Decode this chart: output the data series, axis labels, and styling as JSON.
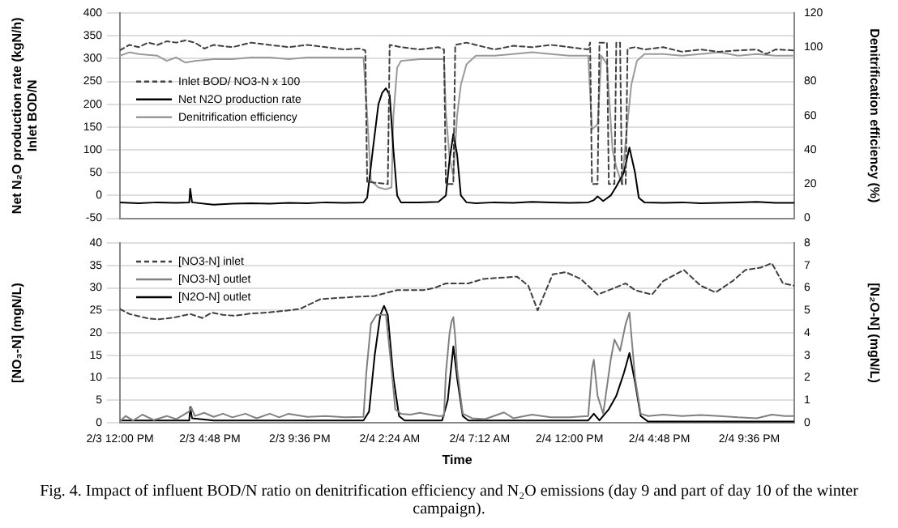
{
  "chart_data": [
    {
      "type": "line",
      "ylabel": "Net N₂O production rate (kgN/h)\nInlet BOD/N",
      "y2label": "Denitrification efficiency (%)",
      "xlim": [
        "--02-03T12:00",
        "--02-05T00:00"
      ],
      "ylim": [
        -50,
        400
      ],
      "yticks": [
        -50,
        0,
        50,
        100,
        150,
        200,
        250,
        300,
        350,
        400
      ],
      "y2lim": [
        0,
        120
      ],
      "y2ticks": [
        0,
        20,
        40,
        60,
        80,
        100,
        120
      ],
      "tick_labels": "y",
      "grid": "y",
      "legend": "left",
      "series": [
        {
          "name": "Inlet BOD/ NO3-N x 100",
          "color": "#404040",
          "line_style": "dashed",
          "x": [
            "--02-03T12:00",
            "--02-03T12:30",
            "--02-03T13:00",
            "--02-03T13:30",
            "--02-03T14:00",
            "--02-03T14:30",
            "--02-03T15:00",
            "--02-03T15:30",
            "--02-03T16:00",
            "--02-03T16:30",
            "--02-03T17:00",
            "--02-03T18:00",
            "--02-03T19:00",
            "--02-03T20:00",
            "--02-03T21:00",
            "--02-03T22:00",
            "--02-03T23:00",
            "--02-04T00:00",
            "--02-04T00:48",
            "--02-04T01:06",
            "--02-04T01:12",
            "--02-04T02:18",
            "--02-04T02:24",
            "--02-04T03:00",
            "--02-04T04:00",
            "--02-04T05:00",
            "--02-04T05:18",
            "--02-04T05:24",
            "--02-04T05:48",
            "--02-04T05:54",
            "--02-04T06:30",
            "--02-04T07:00",
            "--02-04T08:00",
            "--02-04T09:00",
            "--02-04T10:00",
            "--02-04T11:00",
            "--02-04T12:00",
            "--02-04T13:00",
            "--02-04T13:06",
            "--02-04T13:12",
            "--02-04T13:30",
            "--02-04T13:36",
            "--02-04T14:00",
            "--02-04T14:06",
            "--02-04T14:24",
            "--02-04T14:30",
            "--02-04T14:42",
            "--02-04T14:48",
            "--02-04T15:00",
            "--02-04T15:06",
            "--02-04T15:30",
            "--02-04T16:00",
            "--02-04T17:00",
            "--02-04T18:00",
            "--02-04T19:00",
            "--02-04T20:00",
            "--02-04T21:00",
            "--02-04T22:00",
            "--02-04T22:30",
            "--02-04T23:00",
            "--02-05T00:00"
          ],
          "values": [
            318,
            330,
            325,
            335,
            330,
            338,
            335,
            340,
            335,
            322,
            330,
            325,
            335,
            330,
            325,
            330,
            325,
            320,
            322,
            318,
            30,
            25,
            330,
            325,
            320,
            325,
            320,
            25,
            25,
            330,
            335,
            330,
            320,
            328,
            325,
            330,
            325,
            320,
            335,
            25,
            25,
            335,
            335,
            25,
            25,
            335,
            335,
            25,
            25,
            322,
            325,
            320,
            325,
            315,
            320,
            315,
            318,
            320,
            310,
            320,
            318
          ]
        },
        {
          "name": "Net N2O production rate",
          "color": "#000000",
          "line_style": "solid",
          "x": [
            "--02-03T12:00",
            "--02-03T13:00",
            "--02-03T14:00",
            "--02-03T15:00",
            "--02-03T15:42",
            "--02-03T15:45",
            "--02-03T15:51",
            "--02-03T17:00",
            "--02-03T18:00",
            "--02-03T19:00",
            "--02-03T20:00",
            "--02-03T21:00",
            "--02-03T22:00",
            "--02-03T23:00",
            "--02-04T00:00",
            "--02-04T01:00",
            "--02-04T01:12",
            "--02-04T01:30",
            "--02-04T01:48",
            "--02-04T02:00",
            "--02-04T02:12",
            "--02-04T02:24",
            "--02-04T02:36",
            "--02-04T02:48",
            "--02-04T03:00",
            "--02-04T04:00",
            "--02-04T05:00",
            "--02-04T05:24",
            "--02-04T05:36",
            "--02-04T05:48",
            "--02-04T06:00",
            "--02-04T06:12",
            "--02-04T06:30",
            "--02-04T07:00",
            "--02-04T08:00",
            "--02-04T09:00",
            "--02-04T10:00",
            "--02-04T11:00",
            "--02-04T12:00",
            "--02-04T13:00",
            "--02-04T13:18",
            "--02-04T13:30",
            "--02-04T13:48",
            "--02-04T14:12",
            "--02-04T14:30",
            "--02-04T14:54",
            "--02-04T15:12",
            "--02-04T15:30",
            "--02-04T15:42",
            "--02-04T16:00",
            "--02-04T17:00",
            "--02-04T18:00",
            "--02-04T19:00",
            "--02-04T20:00",
            "--02-04T21:00",
            "--02-04T22:00",
            "--02-04T23:00",
            "--02-05T00:00"
          ],
          "values": [
            -15,
            -17,
            -15,
            -16,
            -15,
            15,
            -15,
            -20,
            -18,
            -17,
            -18,
            -16,
            -17,
            -15,
            -16,
            -15,
            -5,
            100,
            200,
            225,
            235,
            220,
            100,
            0,
            -15,
            -15,
            -14,
            0,
            80,
            135,
            90,
            0,
            -15,
            -17,
            -15,
            -16,
            -14,
            -15,
            -16,
            -15,
            -10,
            -2,
            -12,
            0,
            20,
            50,
            105,
            50,
            -5,
            -15,
            -16,
            -15,
            -17,
            -16,
            -15,
            -14,
            -16,
            -16
          ]
        },
        {
          "name": "Denitrification efficiency",
          "color": "#9a9a9a",
          "line_style": "solid",
          "axis": "y2",
          "x": [
            "--02-03T12:00",
            "--02-03T12:30",
            "--02-03T13:00",
            "--02-03T14:00",
            "--02-03T14:30",
            "--02-03T15:00",
            "--02-03T15:30",
            "--02-03T16:00",
            "--02-03T17:00",
            "--02-03T18:00",
            "--02-03T19:00",
            "--02-03T20:00",
            "--02-03T21:00",
            "--02-03T22:00",
            "--02-03T23:00",
            "--02-04T00:00",
            "--02-04T01:00",
            "--02-04T01:12",
            "--02-04T01:24",
            "--02-04T01:48",
            "--02-04T02:12",
            "--02-04T02:30",
            "--02-04T02:36",
            "--02-04T02:48",
            "--02-04T03:00",
            "--02-04T04:00",
            "--02-04T05:00",
            "--02-04T05:18",
            "--02-04T05:24",
            "--02-04T05:36",
            "--02-04T05:48",
            "--02-04T06:00",
            "--02-04T06:12",
            "--02-04T06:30",
            "--02-04T07:00",
            "--02-04T08:00",
            "--02-04T09:00",
            "--02-04T10:00",
            "--02-04T11:00",
            "--02-04T12:00",
            "--02-04T13:00",
            "--02-04T13:12",
            "--02-04T13:30",
            "--02-04T13:42",
            "--02-04T14:00",
            "--02-04T14:18",
            "--02-04T14:30",
            "--02-04T14:48",
            "--02-04T15:00",
            "--02-04T15:18",
            "--02-04T15:36",
            "--02-04T16:00",
            "--02-04T17:00",
            "--02-04T18:00",
            "--02-04T19:00",
            "--02-04T20:00",
            "--02-04T21:00",
            "--02-04T22:00",
            "--02-04T23:00",
            "--02-05T00:00"
          ],
          "values": [
            95,
            97,
            96,
            95,
            92,
            94,
            91,
            92,
            93,
            93,
            94,
            94,
            93,
            94,
            94,
            94,
            94,
            60,
            22,
            18,
            17,
            18,
            60,
            88,
            92,
            93,
            93,
            93,
            62,
            35,
            25,
            60,
            78,
            90,
            95,
            95,
            96,
            97,
            96,
            95,
            95,
            52,
            55,
            95,
            90,
            40,
            30,
            20,
            45,
            78,
            92,
            96,
            96,
            95,
            96,
            97,
            95,
            96,
            95,
            95
          ]
        }
      ]
    },
    {
      "type": "line",
      "xlabel": "Time",
      "ylabel": "[NO₃-N] (mgN/L)",
      "y2label": "[N₂O-N] (mgN/L)",
      "xlim": [
        "--02-03T12:00",
        "--02-05T00:00"
      ],
      "xticks": [
        {
          "value": "--02-03T12:00",
          "label": "2/3 12:00 PM"
        },
        {
          "value": "--02-03T16:48",
          "label": "2/3 4:48 PM"
        },
        {
          "value": "--02-03T21:36",
          "label": "2/3 9:36 PM"
        },
        {
          "value": "--02-04T02:24",
          "label": "2/4 2:24 AM"
        },
        {
          "value": "--02-04T07:12",
          "label": "2/4 7:12 AM"
        },
        {
          "value": "--02-04T12:00",
          "label": "2/4 12:00 PM"
        },
        {
          "value": "--02-04T16:48",
          "label": "2/4 4:48 PM"
        },
        {
          "value": "--02-04T21:36",
          "label": "2/4 9:36 PM"
        }
      ],
      "ylim": [
        0,
        40
      ],
      "yticks": [
        0,
        5,
        10,
        15,
        20,
        25,
        30,
        35,
        40
      ],
      "y2lim": [
        0,
        8
      ],
      "y2ticks": [
        0,
        1,
        2,
        3,
        4,
        5,
        6,
        7,
        8
      ],
      "grid": "y",
      "legend": "top left",
      "annotations": [
        "Fig. 4. Impact of influent BOD/N ratio on denitrification efficiency and N₂O emissions (day 9 and part of day 10 of the winter campaign)."
      ],
      "series": [
        {
          "name": "[NO3-N] inlet",
          "color": "#404040",
          "line_style": "dashed",
          "x": [
            "--02-03T12:00",
            "--02-03T12:30",
            "--02-03T13:00",
            "--02-03T13:30",
            "--02-03T14:00",
            "--02-03T14:30",
            "--02-03T15:00",
            "--02-03T15:45",
            "--02-03T16:24",
            "--02-03T16:54",
            "--02-03T17:30",
            "--02-03T18:06",
            "--02-03T19:00",
            "--02-03T19:48",
            "--02-03T21:00",
            "--02-03T21:36",
            "--02-03T22:42",
            "--02-04T00:30",
            "--02-04T01:36",
            "--02-04T02:48",
            "--02-04T04:12",
            "--02-04T04:48",
            "--02-04T05:24",
            "--02-04T06:36",
            "--02-04T07:24",
            "--02-04T09:12",
            "--02-04T09:48",
            "--02-04T10:18",
            "--02-04T11:06",
            "--02-04T11:48",
            "--02-04T12:36",
            "--02-04T13:30",
            "--02-04T15:00",
            "--02-04T15:30",
            "--02-04T16:24",
            "--02-04T17:00",
            "--02-04T18:06",
            "--02-04T19:00",
            "--02-04T19:48",
            "--02-04T20:42",
            "--02-04T21:24",
            "--02-04T22:12",
            "--02-04T22:48",
            "--02-04T23:24",
            "--02-05T00:00"
          ],
          "values": [
            25.3,
            24.2,
            23.7,
            23.2,
            23,
            23.2,
            23.5,
            24.2,
            23.3,
            24.5,
            24,
            23.8,
            24.3,
            24.5,
            25,
            25.3,
            27.5,
            28,
            28.2,
            29.5,
            29.5,
            30,
            31,
            31,
            32,
            32.5,
            30.5,
            25,
            33,
            33.5,
            32,
            28.5,
            31,
            29.5,
            28.5,
            31.5,
            34,
            30.5,
            29,
            31.5,
            34,
            34.5,
            35.5,
            31,
            30.5
          ]
        },
        {
          "name": "[NO3-N] outlet",
          "color": "#808080",
          "line_style": "solid",
          "x": [
            "--02-03T12:00",
            "--02-03T12:18",
            "--02-03T12:42",
            "--02-03T13:12",
            "--02-03T13:48",
            "--02-03T14:30",
            "--02-03T15:00",
            "--02-03T15:42",
            "--02-03T15:48",
            "--02-03T16:00",
            "--02-03T16:30",
            "--02-03T17:00",
            "--02-03T17:30",
            "--02-03T18:00",
            "--02-03T18:42",
            "--02-03T19:18",
            "--02-03T20:00",
            "--02-03T20:30",
            "--02-03T21:00",
            "--02-03T22:00",
            "--02-03T23:00",
            "--02-04T00:00",
            "--02-04T01:00",
            "--02-04T01:09",
            "--02-04T01:24",
            "--02-04T01:42",
            "--02-04T02:12",
            "--02-04T02:30",
            "--02-04T02:42",
            "--02-04T03:00",
            "--02-04T03:30",
            "--02-04T04:00",
            "--02-04T05:00",
            "--02-04T05:18",
            "--02-04T05:24",
            "--02-04T05:36",
            "--02-04T05:42",
            "--02-04T05:48",
            "--02-04T05:54",
            "--02-04T06:00",
            "--02-04T06:18",
            "--02-04T06:48",
            "--02-04T07:30",
            "--02-04T08:30",
            "--02-04T09:00",
            "--02-04T10:00",
            "--02-04T11:00",
            "--02-04T12:00",
            "--02-04T13:00",
            "--02-04T13:12",
            "--02-04T13:18",
            "--02-04T13:30",
            "--02-04T13:48",
            "--02-04T14:12",
            "--02-04T14:24",
            "--02-04T14:42",
            "--02-04T15:00",
            "--02-04T15:12",
            "--02-04T15:30",
            "--02-04T15:48",
            "--02-04T16:12",
            "--02-04T17:00",
            "--02-04T18:00",
            "--02-04T19:00",
            "--02-04T20:00",
            "--02-04T21:00",
            "--02-04T22:00",
            "--02-04T22:48",
            "--02-04T23:30",
            "--02-05T00:00"
          ],
          "values": [
            0.3,
            1.5,
            0.5,
            1.8,
            0.6,
            1.5,
            0.8,
            2.5,
            3.5,
            1.5,
            2.2,
            1.3,
            2,
            1.2,
            2,
            1,
            2,
            1.2,
            2,
            1.3,
            1.5,
            1.2,
            1.3,
            11,
            22,
            24,
            24,
            12,
            3,
            2,
            1.8,
            2.2,
            1.5,
            1.5,
            11,
            20,
            22.5,
            23.5,
            19,
            12,
            2,
            1,
            0.8,
            2.3,
            1,
            1.8,
            1.2,
            1.2,
            1.5,
            12,
            14,
            6,
            2,
            14,
            18.5,
            16,
            22,
            24.5,
            10,
            2,
            1.5,
            1.8,
            1.5,
            1.7,
            1.5,
            1.2,
            1,
            1.8,
            1.5,
            1.5
          ]
        },
        {
          "name": "[N2O-N] outlet",
          "color": "#000000",
          "line_style": "solid",
          "axis": "y2",
          "x": [
            "--02-03T12:00",
            "--02-03T13:00",
            "--02-03T15:42",
            "--02-03T15:45",
            "--02-03T15:51",
            "--02-03T17:00",
            "--02-03T20:00",
            "--02-04T00:00",
            "--02-04T01:00",
            "--02-04T01:18",
            "--02-04T01:36",
            "--02-04T01:54",
            "--02-04T02:06",
            "--02-04T02:18",
            "--02-04T02:36",
            "--02-04T02:54",
            "--02-04T03:12",
            "--02-04T05:12",
            "--02-04T05:30",
            "--02-04T05:48",
            "--02-04T06:00",
            "--02-04T06:18",
            "--02-04T06:36",
            "--02-04T13:00",
            "--02-04T13:18",
            "--02-04T13:36",
            "--02-04T14:06",
            "--02-04T14:30",
            "--02-04T14:54",
            "--02-04T15:12",
            "--02-04T15:30",
            "--02-04T15:48",
            "--02-04T16:12",
            "--02-05T00:00"
          ],
          "values": [
            0.1,
            0.1,
            0.1,
            0.7,
            0.2,
            0.1,
            0.1,
            0.1,
            0.1,
            0.5,
            3,
            4.8,
            5.2,
            4.8,
            2,
            0.3,
            0.1,
            0.1,
            1,
            3.4,
            2,
            0.3,
            0.1,
            0.1,
            0.4,
            0.1,
            0.6,
            1.2,
            2.2,
            3.1,
            1.8,
            0.3,
            0.05,
            0.05
          ]
        }
      ]
    }
  ]
}
